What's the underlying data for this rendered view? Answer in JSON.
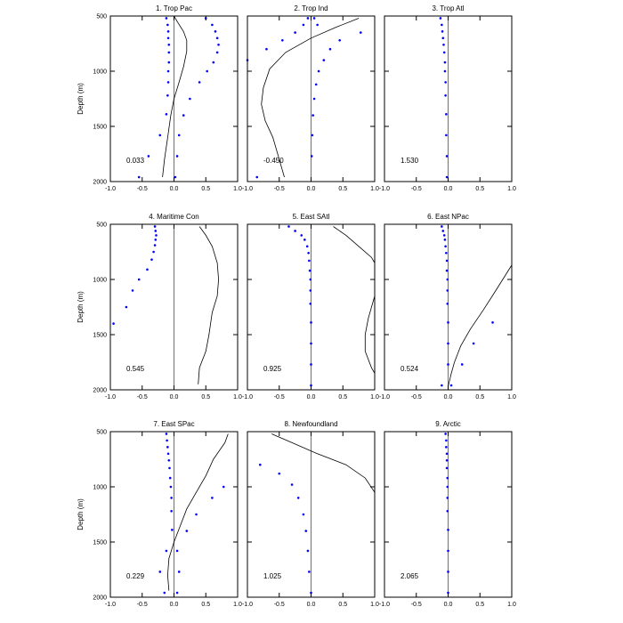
{
  "chart_data": {
    "type": "multi-panel-profile",
    "ylabel": "Depth (m)",
    "ylim": [
      500,
      2000
    ],
    "y_reversed": true,
    "yticks": [
      "500",
      "1000",
      "1500",
      "2000"
    ],
    "xlim": [
      -1.0,
      1.0
    ],
    "xticks": [
      "-1.0",
      "-0.5",
      "0.0",
      "0.5",
      "1.0"
    ],
    "colors": {
      "zero_line": "#ff0000",
      "dots": "#0000ff",
      "curve": "#000000",
      "frame": "#000000"
    },
    "panels": [
      {
        "title": "1. Trop Pac",
        "annotation": "0.033",
        "curve": [
          [
            0.0,
            500
          ],
          [
            0.05,
            550
          ],
          [
            0.15,
            640
          ],
          [
            0.2,
            720
          ],
          [
            0.2,
            820
          ],
          [
            0.15,
            960
          ],
          [
            0.08,
            1100
          ],
          [
            0.0,
            1250
          ],
          [
            -0.05,
            1400
          ],
          [
            -0.1,
            1600
          ],
          [
            -0.15,
            1800
          ],
          [
            -0.18,
            1960
          ]
        ],
        "dots_left": [
          [
            -0.12,
            520
          ],
          [
            -0.1,
            580
          ],
          [
            -0.09,
            640
          ],
          [
            -0.09,
            700
          ],
          [
            -0.08,
            760
          ],
          [
            -0.08,
            830
          ],
          [
            -0.08,
            920
          ],
          [
            -0.09,
            1000
          ],
          [
            -0.09,
            1100
          ],
          [
            -0.1,
            1220
          ],
          [
            -0.12,
            1390
          ],
          [
            -0.22,
            1580
          ],
          [
            -0.4,
            1770
          ],
          [
            -0.55,
            1960
          ]
        ],
        "dots_right": [
          [
            0.5,
            520
          ],
          [
            0.6,
            580
          ],
          [
            0.65,
            640
          ],
          [
            0.68,
            700
          ],
          [
            0.7,
            760
          ],
          [
            0.68,
            830
          ],
          [
            0.62,
            920
          ],
          [
            0.52,
            1000
          ],
          [
            0.4,
            1100
          ],
          [
            0.25,
            1250
          ],
          [
            0.15,
            1400
          ],
          [
            0.08,
            1580
          ],
          [
            0.05,
            1770
          ],
          [
            0.02,
            1960
          ]
        ]
      },
      {
        "title": "2. Trop Ind",
        "annotation": "-0.450",
        "curve": [
          [
            0.75,
            520
          ],
          [
            0.4,
            600
          ],
          [
            0.0,
            700
          ],
          [
            -0.4,
            830
          ],
          [
            -0.65,
            980
          ],
          [
            -0.75,
            1150
          ],
          [
            -0.78,
            1300
          ],
          [
            -0.72,
            1450
          ],
          [
            -0.6,
            1600
          ],
          [
            -0.5,
            1800
          ],
          [
            -0.42,
            1960
          ]
        ],
        "dots_left": [
          [
            -0.05,
            520
          ],
          [
            -0.12,
            580
          ],
          [
            -0.25,
            650
          ],
          [
            -0.45,
            720
          ],
          [
            -0.7,
            800
          ],
          [
            -1.0,
            900
          ]
        ],
        "dots_right": [
          [
            0.05,
            520
          ],
          [
            0.1,
            580
          ],
          [
            0.78,
            650
          ],
          [
            0.45,
            720
          ],
          [
            0.3,
            800
          ],
          [
            0.2,
            900
          ],
          [
            0.12,
            1000
          ],
          [
            0.08,
            1120
          ],
          [
            0.05,
            1250
          ],
          [
            0.03,
            1400
          ],
          [
            0.02,
            1580
          ],
          [
            0.01,
            1770
          ],
          [
            -0.85,
            1960
          ]
        ]
      },
      {
        "title": "3. Trop Atl",
        "annotation": "1.530",
        "curve": [],
        "dots_left": [
          [
            -0.12,
            520
          ],
          [
            -0.1,
            580
          ],
          [
            -0.09,
            640
          ],
          [
            -0.08,
            700
          ],
          [
            -0.07,
            760
          ],
          [
            -0.06,
            830
          ],
          [
            -0.05,
            920
          ],
          [
            -0.05,
            1000
          ],
          [
            -0.04,
            1100
          ],
          [
            -0.04,
            1220
          ],
          [
            -0.03,
            1390
          ],
          [
            -0.03,
            1580
          ],
          [
            -0.02,
            1770
          ],
          [
            -0.02,
            1960
          ]
        ],
        "dots_right": []
      },
      {
        "title": "4. Maritime Con",
        "annotation": "0.545",
        "curve": [
          [
            0.4,
            520
          ],
          [
            0.5,
            600
          ],
          [
            0.6,
            700
          ],
          [
            0.68,
            850
          ],
          [
            0.7,
            1000
          ],
          [
            0.68,
            1150
          ],
          [
            0.6,
            1300
          ],
          [
            0.55,
            1500
          ],
          [
            0.5,
            1650
          ],
          [
            0.4,
            1800
          ],
          [
            0.38,
            1950
          ]
        ],
        "dots_left": [
          [
            -0.3,
            520
          ],
          [
            -0.29,
            560
          ],
          [
            -0.28,
            600
          ],
          [
            -0.29,
            640
          ],
          [
            -0.3,
            690
          ],
          [
            -0.32,
            750
          ],
          [
            -0.35,
            820
          ],
          [
            -0.42,
            910
          ],
          [
            -0.55,
            1000
          ],
          [
            -0.65,
            1100
          ],
          [
            -0.75,
            1250
          ],
          [
            -0.95,
            1400
          ]
        ],
        "dots_right": []
      },
      {
        "title": "5. East SAtl",
        "annotation": "0.925",
        "curve": [
          [
            0.35,
            520
          ],
          [
            0.55,
            600
          ],
          [
            0.75,
            700
          ],
          [
            0.95,
            800
          ],
          [
            1.0,
            850
          ],
          [
            1.0,
            1150
          ],
          [
            0.9,
            1350
          ],
          [
            0.85,
            1500
          ],
          [
            0.85,
            1650
          ],
          [
            0.95,
            1800
          ],
          [
            1.0,
            1850
          ]
        ],
        "dots_left": [
          [
            -0.35,
            520
          ],
          [
            -0.25,
            560
          ],
          [
            -0.15,
            600
          ],
          [
            -0.1,
            640
          ],
          [
            -0.06,
            700
          ],
          [
            -0.04,
            760
          ],
          [
            -0.03,
            830
          ],
          [
            -0.02,
            920
          ],
          [
            -0.01,
            1000
          ],
          [
            -0.01,
            1100
          ],
          [
            -0.01,
            1220
          ],
          [
            0.0,
            1390
          ],
          [
            0.0,
            1580
          ],
          [
            0.0,
            1770
          ],
          [
            0.0,
            1960
          ]
        ],
        "dots_right": []
      },
      {
        "title": "6. East NPac",
        "annotation": "0.524",
        "curve": [
          [
            1.0,
            870
          ],
          [
            0.75,
            1100
          ],
          [
            0.55,
            1280
          ],
          [
            0.35,
            1450
          ],
          [
            0.2,
            1600
          ],
          [
            0.1,
            1750
          ],
          [
            0.05,
            1850
          ],
          [
            0.0,
            1970
          ]
        ],
        "dots_left": [
          [
            -0.1,
            520
          ],
          [
            -0.08,
            560
          ],
          [
            -0.06,
            600
          ],
          [
            -0.05,
            640
          ],
          [
            -0.04,
            700
          ],
          [
            -0.03,
            760
          ],
          [
            -0.02,
            830
          ],
          [
            -0.02,
            920
          ],
          [
            -0.01,
            1000
          ],
          [
            -0.01,
            1100
          ],
          [
            -0.01,
            1220
          ],
          [
            0.0,
            1390
          ],
          [
            0.0,
            1580
          ],
          [
            0.0,
            1770
          ],
          [
            -0.1,
            1960
          ]
        ],
        "dots_right": [
          [
            0.7,
            1390
          ],
          [
            0.4,
            1580
          ],
          [
            0.22,
            1770
          ],
          [
            0.05,
            1960
          ]
        ]
      },
      {
        "title": "7. East SPac",
        "annotation": "0.229",
        "curve": [
          [
            0.85,
            520
          ],
          [
            0.8,
            600
          ],
          [
            0.62,
            750
          ],
          [
            0.5,
            900
          ],
          [
            0.35,
            1050
          ],
          [
            0.2,
            1200
          ],
          [
            0.1,
            1350
          ],
          [
            0.0,
            1500
          ],
          [
            -0.08,
            1650
          ],
          [
            -0.1,
            1800
          ],
          [
            -0.08,
            1940
          ]
        ],
        "dots_left": [
          [
            -0.12,
            520
          ],
          [
            -0.11,
            580
          ],
          [
            -0.1,
            640
          ],
          [
            -0.09,
            700
          ],
          [
            -0.08,
            760
          ],
          [
            -0.07,
            830
          ],
          [
            -0.06,
            920
          ],
          [
            -0.05,
            1000
          ],
          [
            -0.04,
            1100
          ],
          [
            -0.04,
            1220
          ],
          [
            -0.03,
            1390
          ],
          [
            -0.12,
            1580
          ],
          [
            -0.22,
            1770
          ],
          [
            -0.15,
            1960
          ]
        ],
        "dots_right": [
          [
            0.78,
            1000
          ],
          [
            0.6,
            1100
          ],
          [
            0.35,
            1250
          ],
          [
            0.2,
            1400
          ],
          [
            0.05,
            1580
          ],
          [
            0.08,
            1770
          ],
          [
            0.05,
            1960
          ]
        ]
      },
      {
        "title": "8. Newfoundland",
        "annotation": "1.025",
        "curve": [
          [
            -0.62,
            520
          ],
          [
            -0.3,
            600
          ],
          [
            0.1,
            700
          ],
          [
            0.55,
            800
          ],
          [
            0.85,
            920
          ],
          [
            1.0,
            1050
          ]
        ],
        "dots_left": [
          [
            -0.8,
            800
          ],
          [
            -0.5,
            880
          ],
          [
            -0.3,
            980
          ],
          [
            -0.2,
            1100
          ],
          [
            -0.12,
            1250
          ],
          [
            -0.08,
            1400
          ],
          [
            -0.05,
            1580
          ],
          [
            -0.03,
            1770
          ],
          [
            0.0,
            1960
          ]
        ],
        "dots_right": []
      },
      {
        "title": "9. Arctic",
        "annotation": "2.065",
        "curve": [],
        "dots_left": [
          [
            -0.04,
            520
          ],
          [
            -0.03,
            580
          ],
          [
            -0.03,
            640
          ],
          [
            -0.02,
            700
          ],
          [
            -0.02,
            760
          ],
          [
            -0.02,
            830
          ],
          [
            -0.01,
            920
          ],
          [
            -0.01,
            1000
          ],
          [
            -0.01,
            1100
          ],
          [
            -0.01,
            1220
          ],
          [
            0.0,
            1390
          ],
          [
            0.0,
            1580
          ],
          [
            0.0,
            1770
          ],
          [
            0.0,
            1960
          ]
        ],
        "dots_right": []
      }
    ]
  }
}
